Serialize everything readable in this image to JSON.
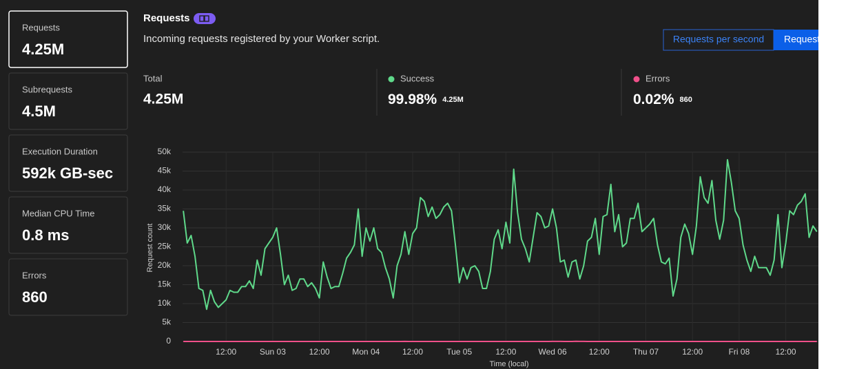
{
  "sidebar": [
    {
      "label": "Requests",
      "value": "4.25M"
    },
    {
      "label": "Subrequests",
      "value": "4.5M"
    },
    {
      "label": "Execution Duration",
      "value": "592k GB-sec"
    },
    {
      "label": "Median CPU Time",
      "value": "0.8 ms"
    },
    {
      "label": "Errors",
      "value": "860"
    }
  ],
  "header": {
    "title": "Requests",
    "description": "Incoming requests registered by your Worker script."
  },
  "toggle": [
    "Requests per second",
    "Requests"
  ],
  "stats": {
    "total": {
      "label": "Total",
      "value": "4.25M"
    },
    "success": {
      "percent": "99.98%",
      "count": "4.25M"
    },
    "errors": {
      "percent": "0.02%",
      "count": "860"
    }
  },
  "chart_data": {
    "type": "line",
    "x_label": "Time (local)",
    "y_label": "Request count",
    "grid": true,
    "xlim": [
      0.8,
      164.4
    ],
    "ylim": [
      0,
      50000
    ],
    "yticks": [
      0,
      {
        "value": 5000,
        "label": "5k"
      },
      {
        "value": 10000,
        "label": "10k"
      },
      {
        "value": 15000,
        "label": "15k"
      },
      {
        "value": 20000,
        "label": "20k"
      },
      {
        "value": 25000,
        "label": "25k"
      },
      {
        "value": 30000,
        "label": "30k"
      },
      {
        "value": 35000,
        "label": "35k"
      },
      {
        "value": 40000,
        "label": "40k"
      },
      {
        "value": 45000,
        "label": "45k"
      },
      {
        "value": 50000,
        "label": "50k"
      }
    ],
    "xticks": [
      {
        "value": 12,
        "label": "12:00"
      },
      {
        "value": 24,
        "label": "Sun 03"
      },
      {
        "value": 36,
        "label": "12:00"
      },
      {
        "value": 48,
        "label": "Mon 04"
      },
      {
        "value": 60,
        "label": "12:00"
      },
      {
        "value": 72,
        "label": "Tue 05"
      },
      {
        "value": 84,
        "label": "12:00"
      },
      {
        "value": 96,
        "label": "Wed 06"
      },
      {
        "value": 108,
        "label": "12:00"
      },
      {
        "value": 120,
        "label": "Thu 07"
      },
      {
        "value": 132,
        "label": "12:00"
      },
      {
        "value": 144,
        "label": "Fri 08"
      },
      {
        "value": 156,
        "label": "12:00"
      }
    ],
    "x": [
      1,
      2,
      3,
      4,
      5,
      6,
      7,
      8,
      9,
      10,
      11,
      12,
      13,
      14,
      15,
      16,
      17,
      18,
      19,
      20,
      21,
      22,
      23,
      24,
      25,
      26,
      27,
      28,
      29,
      30,
      31,
      32,
      33,
      34,
      35,
      36,
      37,
      38,
      39,
      40,
      41,
      42,
      43,
      44,
      45,
      46,
      47,
      48,
      49,
      50,
      51,
      52,
      53,
      54,
      55,
      56,
      57,
      58,
      59,
      60,
      61,
      62,
      63,
      64,
      65,
      66,
      67,
      68,
      69,
      70,
      71,
      72,
      73,
      74,
      75,
      76,
      77,
      78,
      79,
      80,
      81,
      82,
      83,
      84,
      85,
      86,
      87,
      88,
      89,
      90,
      91,
      92,
      93,
      94,
      95,
      96,
      97,
      98,
      99,
      100,
      101,
      102,
      103,
      104,
      105,
      106,
      107,
      108,
      109,
      110,
      111,
      112,
      113,
      114,
      115,
      116,
      117,
      118,
      119,
      120,
      121,
      122,
      123,
      124,
      125,
      126,
      127,
      128,
      129,
      130,
      131,
      132,
      133,
      134,
      135,
      136,
      137,
      138,
      139,
      140,
      141,
      142,
      143,
      144,
      145,
      146,
      147,
      148,
      149,
      150,
      151,
      152,
      153,
      154,
      155,
      156,
      157,
      158,
      159,
      160,
      161,
      162,
      163,
      164
    ],
    "series": [
      {
        "name": "Success",
        "color": "#5fd98a",
        "values": [
          34500,
          26000,
          28000,
          22500,
          14000,
          13500,
          8500,
          13500,
          10500,
          9000,
          10000,
          11000,
          13500,
          13000,
          13000,
          14500,
          14500,
          16000,
          14000,
          21500,
          17500,
          24500,
          26000,
          27500,
          30000,
          23000,
          15000,
          17500,
          13500,
          14000,
          16500,
          16500,
          14500,
          15500,
          14000,
          11500,
          21000,
          17000,
          14000,
          14500,
          14500,
          18000,
          22000,
          23500,
          25500,
          35000,
          22500,
          30000,
          26500,
          30000,
          24500,
          23500,
          19500,
          16500,
          11500,
          20000,
          23000,
          29000,
          23000,
          28500,
          30000,
          38000,
          37000,
          33000,
          35500,
          32500,
          33500,
          35500,
          36500,
          34500,
          25500,
          15500,
          19500,
          16500,
          19500,
          20000,
          18500,
          14000,
          14000,
          18500,
          27000,
          29500,
          24500,
          31500,
          26000,
          45500,
          34000,
          27000,
          24500,
          21000,
          27500,
          34000,
          33000,
          30000,
          30500,
          35000,
          30000,
          21000,
          21500,
          17000,
          21000,
          21500,
          16500,
          20000,
          26500,
          27500,
          32500,
          23000,
          33000,
          33500,
          41500,
          29000,
          33500,
          25000,
          26000,
          32500,
          32500,
          36500,
          29000,
          30000,
          31000,
          32500,
          25500,
          21000,
          20500,
          22000,
          12000,
          16500,
          27500,
          31000,
          28500,
          23000,
          30500,
          43500,
          38000,
          36500,
          42500,
          32000,
          27000,
          32000,
          48000,
          42000,
          34500,
          32500,
          25500,
          21500,
          18500,
          22500,
          19500,
          19500,
          19500,
          17500,
          21500,
          33500,
          19500,
          26000,
          34500,
          33500,
          36000,
          37000,
          39000,
          27500,
          30500,
          29000
        ]
      },
      {
        "name": "Errors",
        "color": "#f0508a",
        "values": [
          5,
          5,
          5,
          5,
          5,
          5,
          5,
          5,
          5,
          5,
          5,
          5,
          5,
          5,
          5,
          5,
          5,
          5,
          5,
          5,
          5,
          5,
          5,
          5,
          5,
          5,
          5,
          5,
          5,
          5,
          5,
          5,
          5,
          5,
          5,
          5,
          5,
          5,
          5,
          5,
          5,
          5,
          5,
          5,
          5,
          5,
          5,
          5,
          5,
          5,
          5,
          5,
          5,
          5,
          5,
          5,
          5,
          20,
          5,
          5,
          5,
          5,
          5,
          5,
          5,
          5,
          5,
          5,
          5,
          5,
          5,
          5,
          5,
          5,
          5,
          5,
          5,
          5,
          5,
          5,
          5,
          5,
          5,
          5,
          5,
          5,
          5,
          5,
          5,
          5,
          5,
          5,
          5,
          5,
          5,
          20,
          30,
          20,
          5,
          5,
          10,
          40,
          30,
          20,
          5,
          5,
          5,
          5,
          5,
          5,
          5,
          5,
          5,
          5,
          5,
          5,
          5,
          5,
          5,
          5,
          5,
          5,
          5,
          5,
          5,
          5,
          5,
          5,
          5,
          5,
          5,
          5,
          5,
          5,
          5,
          5,
          5,
          5,
          5,
          5,
          5,
          5,
          5,
          5,
          5,
          5,
          5,
          5,
          5,
          5,
          5,
          5,
          5,
          5,
          5,
          5,
          5,
          5,
          5,
          5,
          5,
          5,
          5,
          5
        ]
      }
    ]
  }
}
